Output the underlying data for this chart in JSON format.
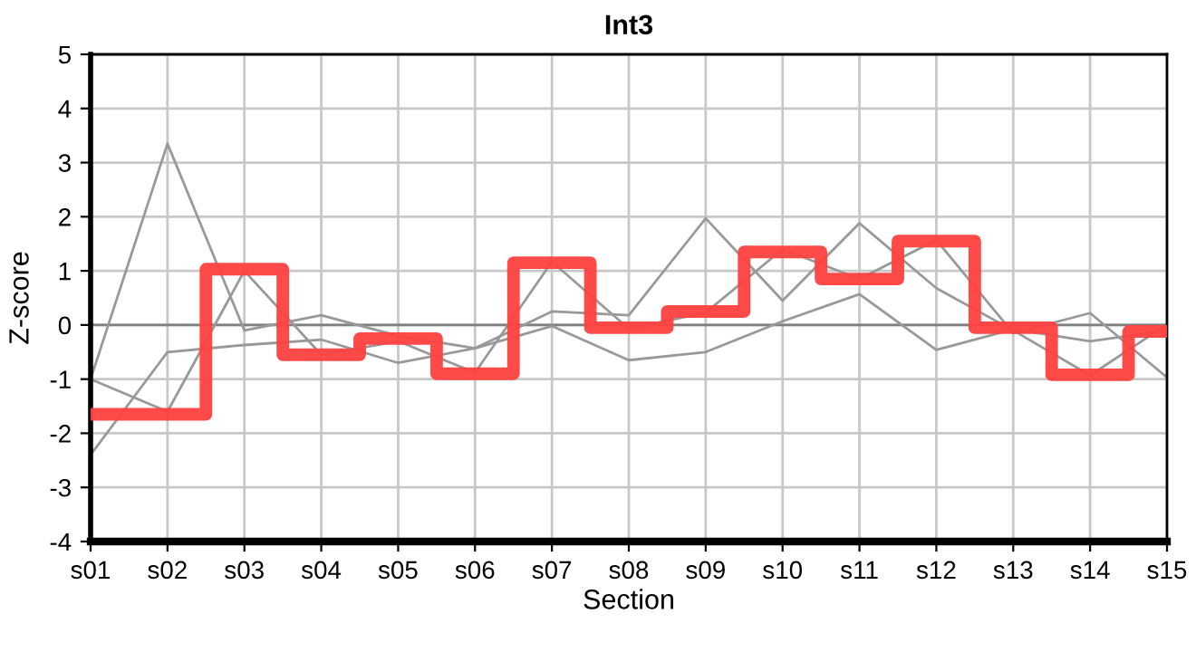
{
  "chart_data": {
    "type": "line",
    "title": "Int3",
    "xlabel": "Section",
    "ylabel": "Z-score",
    "categories": [
      "s01",
      "s02",
      "s03",
      "s04",
      "s05",
      "s06",
      "s07",
      "s08",
      "s09",
      "s10",
      "s11",
      "s12",
      "s13",
      "s14",
      "s15"
    ],
    "series": [
      {
        "color": "#999999",
        "values": [
          -1.0,
          3.35,
          -0.1,
          0.18,
          -0.2,
          -0.43,
          0.25,
          0.18,
          1.97,
          0.45,
          1.88,
          0.68,
          -0.1,
          -0.93,
          0.01
        ]
      },
      {
        "color": "#999999",
        "values": [
          -1.0,
          -1.6,
          1.0,
          -0.55,
          -0.3,
          -0.88,
          1.17,
          -0.07,
          0.23,
          1.4,
          0.85,
          1.57,
          -0.15,
          0.22,
          -0.97
        ]
      },
      {
        "color": "#999999",
        "values": [
          -2.4,
          -0.5,
          -0.37,
          -0.27,
          -0.7,
          -0.43,
          -0.02,
          -0.65,
          -0.5,
          0.07,
          0.57,
          -0.46,
          -0.08,
          -0.3,
          -0.1
        ]
      },
      {
        "type": "step",
        "color": "#ff4040",
        "values": [
          -1.65,
          -1.65,
          1.03,
          -0.55,
          -0.25,
          -0.9,
          1.15,
          -0.05,
          0.25,
          1.35,
          0.85,
          1.55,
          -0.05,
          -0.92,
          -0.12
        ]
      }
    ],
    "ylim": [
      -4,
      5
    ],
    "yticks": [
      -4,
      -3,
      -2,
      -1,
      0,
      1,
      2,
      3,
      4,
      5
    ],
    "ref_lines": [
      {
        "axis": "y",
        "value": 0,
        "color": "#808080"
      }
    ],
    "grid": true,
    "marker": "none",
    "line_style": "solid",
    "legend": false
  }
}
